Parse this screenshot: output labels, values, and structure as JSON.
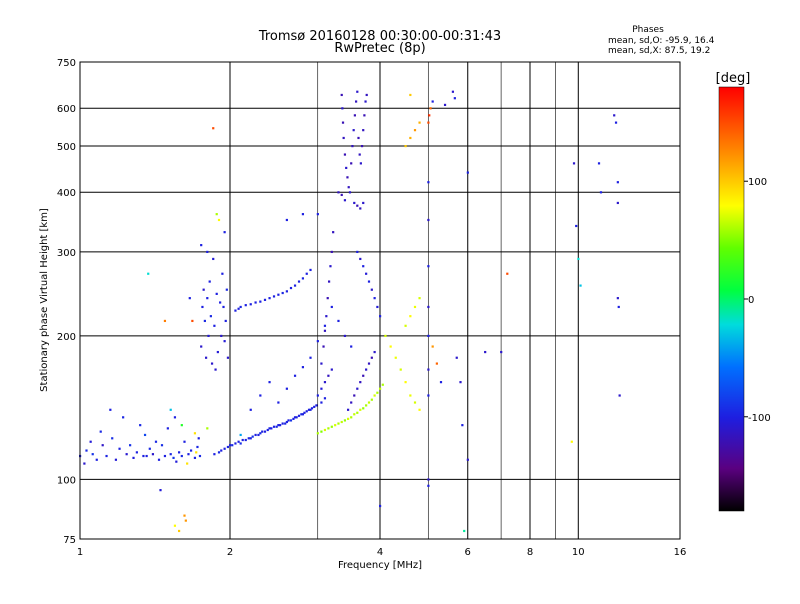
{
  "chart_data": {
    "type": "scatter",
    "title": "Tromsø 20160128 00:30:00-00:31:43",
    "subtitle": "RwPretec (8p)",
    "xlabel": "Frequency [MHz]",
    "ylabel": "Stationary phase Virtual Height [km]",
    "x_scale": "log",
    "y_scale": "log",
    "xlim": [
      1,
      16
    ],
    "ylim": [
      75,
      750
    ],
    "x_ticks": [
      "1",
      "2",
      "4",
      "6",
      "8",
      "10",
      "16"
    ],
    "x_tick_values": [
      1,
      2,
      4,
      6,
      8,
      10,
      16
    ],
    "x_minor_values": [
      3,
      5,
      7,
      9
    ],
    "y_ticks": [
      "75",
      "100",
      "200",
      "300",
      "400",
      "500",
      "600",
      "750"
    ],
    "y_tick_values": [
      75,
      100,
      200,
      300,
      400,
      500,
      600,
      750
    ],
    "grid": true,
    "colorbar": {
      "label": "[deg]",
      "min": -180,
      "max": 180,
      "ticks": [
        "100",
        "0",
        "-100"
      ],
      "tick_values": [
        100,
        0,
        -100
      ]
    },
    "stats": {
      "header": "Phases",
      "line1": "mean, sd,O: -95.9, 16.4",
      "line2": "mean, sd,X:  87.5, 19.2"
    },
    "points": [
      [
        1.0,
        112,
        -100
      ],
      [
        1.02,
        108,
        -110
      ],
      [
        1.03,
        115,
        -95
      ],
      [
        1.05,
        120,
        -105
      ],
      [
        1.06,
        113,
        -90
      ],
      [
        1.08,
        110,
        -100
      ],
      [
        1.1,
        126,
        -95
      ],
      [
        1.11,
        118,
        -112
      ],
      [
        1.13,
        112,
        -98
      ],
      [
        1.15,
        140,
        -100
      ],
      [
        1.16,
        122,
        -92
      ],
      [
        1.18,
        110,
        -105
      ],
      [
        1.2,
        116,
        -100
      ],
      [
        1.22,
        135,
        -96
      ],
      [
        1.24,
        113,
        -108
      ],
      [
        1.26,
        118,
        -90
      ],
      [
        1.28,
        111,
        -102
      ],
      [
        1.3,
        114,
        -99
      ],
      [
        1.32,
        130,
        -95
      ],
      [
        1.34,
        112,
        -100
      ],
      [
        1.35,
        124,
        -80
      ],
      [
        1.36,
        112,
        -100
      ],
      [
        1.37,
        270,
        -20
      ],
      [
        1.38,
        116,
        -95
      ],
      [
        1.4,
        113,
        -110
      ],
      [
        1.42,
        120,
        -95
      ],
      [
        1.44,
        110,
        -100
      ],
      [
        1.45,
        95,
        -105
      ],
      [
        1.46,
        118,
        -92
      ],
      [
        1.48,
        112,
        -100
      ],
      [
        1.5,
        128,
        -100
      ],
      [
        1.52,
        113,
        -96
      ],
      [
        1.54,
        111,
        -88
      ],
      [
        1.55,
        135,
        -100
      ],
      [
        1.56,
        109,
        -104
      ],
      [
        1.58,
        114,
        -99
      ],
      [
        1.6,
        112,
        -95
      ],
      [
        1.62,
        120,
        -100
      ],
      [
        1.63,
        82,
        120
      ],
      [
        1.64,
        108,
        90
      ],
      [
        1.65,
        113,
        -100
      ],
      [
        1.66,
        240,
        -100
      ],
      [
        1.67,
        115,
        -98
      ],
      [
        1.68,
        215,
        150
      ],
      [
        1.7,
        111,
        -100
      ],
      [
        1.71,
        114,
        90
      ],
      [
        1.72,
        117,
        -96
      ],
      [
        1.73,
        122,
        -100
      ],
      [
        1.74,
        112,
        -95
      ],
      [
        1.75,
        190,
        -110
      ],
      [
        1.76,
        230,
        -100
      ],
      [
        1.77,
        250,
        -110
      ],
      [
        1.78,
        215,
        -95
      ],
      [
        1.79,
        180,
        -110
      ],
      [
        1.8,
        240,
        -100
      ],
      [
        1.81,
        200,
        -105
      ],
      [
        1.82,
        260,
        -100
      ],
      [
        1.83,
        220,
        -95
      ],
      [
        1.84,
        175,
        -110
      ],
      [
        1.85,
        290,
        -105
      ],
      [
        1.86,
        210,
        -100
      ],
      [
        1.87,
        170,
        -110
      ],
      [
        1.88,
        245,
        -100
      ],
      [
        1.89,
        185,
        -105
      ],
      [
        1.9,
        350,
        80
      ],
      [
        1.91,
        235,
        -100
      ],
      [
        1.92,
        200,
        -110
      ],
      [
        1.93,
        270,
        -100
      ],
      [
        1.94,
        230,
        -100
      ],
      [
        1.95,
        195,
        -105
      ],
      [
        1.96,
        215,
        -100
      ],
      [
        1.97,
        250,
        -95
      ],
      [
        1.98,
        180,
        -110
      ],
      [
        1.85,
        545,
        150
      ],
      [
        1.75,
        310,
        -100
      ],
      [
        1.8,
        300,
        -100
      ],
      [
        1.88,
        360,
        60
      ],
      [
        1.95,
        330,
        -100
      ],
      [
        1.86,
        113,
        -100
      ],
      [
        1.9,
        114,
        -95
      ],
      [
        1.92,
        115,
        -100
      ],
      [
        1.95,
        116,
        -100
      ],
      [
        1.98,
        117,
        -98
      ],
      [
        2.0,
        118,
        -100
      ],
      [
        2.02,
        118,
        -95
      ],
      [
        2.05,
        119,
        -100
      ],
      [
        2.08,
        120,
        -100
      ],
      [
        2.1,
        119,
        -92
      ],
      [
        2.12,
        121,
        -100
      ],
      [
        2.15,
        121,
        -100
      ],
      [
        2.18,
        122,
        -98
      ],
      [
        2.2,
        122,
        -100
      ],
      [
        2.22,
        123,
        -90
      ],
      [
        2.25,
        124,
        -100
      ],
      [
        2.28,
        124,
        -100
      ],
      [
        2.3,
        125,
        -95
      ],
      [
        2.32,
        126,
        -100
      ],
      [
        2.35,
        126,
        -100
      ],
      [
        2.38,
        127,
        -100
      ],
      [
        2.4,
        128,
        -98
      ],
      [
        2.42,
        128,
        -100
      ],
      [
        2.45,
        129,
        -100
      ],
      [
        2.48,
        129,
        -95
      ],
      [
        2.5,
        130,
        -100
      ],
      [
        2.52,
        130,
        -100
      ],
      [
        2.55,
        131,
        -100
      ],
      [
        2.58,
        131,
        -96
      ],
      [
        2.6,
        132,
        -100
      ],
      [
        2.62,
        133,
        -100
      ],
      [
        2.65,
        133,
        -90
      ],
      [
        2.68,
        134,
        -100
      ],
      [
        2.7,
        135,
        -100
      ],
      [
        2.72,
        135,
        -100
      ],
      [
        2.75,
        136,
        -100
      ],
      [
        2.78,
        137,
        -95
      ],
      [
        2.8,
        137,
        -100
      ],
      [
        2.82,
        138,
        -100
      ],
      [
        2.85,
        139,
        -100
      ],
      [
        2.88,
        140,
        -100
      ],
      [
        2.9,
        140,
        -98
      ],
      [
        2.92,
        141,
        -100
      ],
      [
        2.95,
        142,
        -100
      ],
      [
        2.98,
        143,
        -100
      ],
      [
        2.05,
        226,
        -100
      ],
      [
        2.08,
        228,
        -100
      ],
      [
        2.1,
        230,
        -96
      ],
      [
        2.15,
        232,
        -100
      ],
      [
        2.2,
        233,
        -100
      ],
      [
        2.25,
        235,
        -100
      ],
      [
        2.3,
        236,
        -98
      ],
      [
        2.35,
        238,
        -100
      ],
      [
        2.4,
        240,
        -100
      ],
      [
        2.45,
        242,
        -100
      ],
      [
        2.5,
        244,
        -100
      ],
      [
        2.55,
        246,
        -96
      ],
      [
        2.6,
        248,
        -100
      ],
      [
        2.65,
        252,
        -100
      ],
      [
        2.7,
        255,
        -100
      ],
      [
        2.75,
        260,
        -100
      ],
      [
        2.8,
        264,
        -98
      ],
      [
        2.85,
        270,
        -100
      ],
      [
        2.9,
        275,
        -100
      ],
      [
        2.6,
        350,
        -100
      ],
      [
        2.8,
        360,
        -100
      ],
      [
        3.0,
        360,
        -100
      ],
      [
        3.05,
        175,
        -110
      ],
      [
        3.08,
        190,
        -120
      ],
      [
        3.1,
        205,
        -115
      ],
      [
        3.12,
        220,
        -110
      ],
      [
        3.14,
        240,
        -120
      ],
      [
        3.16,
        260,
        -115
      ],
      [
        3.18,
        280,
        -110
      ],
      [
        3.2,
        300,
        -120
      ],
      [
        3.22,
        330,
        -115
      ],
      [
        3.0,
        150,
        -100
      ],
      [
        3.05,
        155,
        -105
      ],
      [
        3.1,
        160,
        -110
      ],
      [
        3.15,
        165,
        -115
      ],
      [
        3.2,
        170,
        -110
      ],
      [
        3.05,
        145,
        -100
      ],
      [
        3.1,
        148,
        -100
      ],
      [
        3.0,
        125,
        60
      ],
      [
        3.05,
        126,
        50
      ],
      [
        3.1,
        127,
        70
      ],
      [
        3.15,
        128,
        60
      ],
      [
        3.2,
        129,
        55
      ],
      [
        3.25,
        130,
        70
      ],
      [
        3.3,
        131,
        60
      ],
      [
        3.35,
        132,
        65
      ],
      [
        3.4,
        133,
        55
      ],
      [
        3.45,
        134,
        70
      ],
      [
        3.5,
        135,
        60
      ],
      [
        3.55,
        137,
        65
      ],
      [
        3.6,
        138,
        60
      ],
      [
        3.65,
        140,
        70
      ],
      [
        3.7,
        141,
        55
      ],
      [
        3.75,
        143,
        60
      ],
      [
        3.8,
        145,
        65
      ],
      [
        3.85,
        147,
        60
      ],
      [
        3.9,
        150,
        70
      ],
      [
        3.95,
        152,
        60
      ],
      [
        4.0,
        155,
        65
      ],
      [
        4.05,
        158,
        60
      ],
      [
        3.35,
        640,
        -120
      ],
      [
        3.36,
        600,
        -110
      ],
      [
        3.37,
        560,
        -120
      ],
      [
        3.38,
        520,
        -115
      ],
      [
        3.4,
        480,
        -120
      ],
      [
        3.42,
        450,
        -110
      ],
      [
        3.44,
        430,
        -120
      ],
      [
        3.46,
        410,
        -115
      ],
      [
        3.48,
        400,
        -110
      ],
      [
        3.5,
        460,
        -120
      ],
      [
        3.52,
        500,
        -115
      ],
      [
        3.54,
        540,
        -110
      ],
      [
        3.56,
        580,
        -120
      ],
      [
        3.58,
        620,
        -115
      ],
      [
        3.6,
        650,
        -110
      ],
      [
        3.62,
        520,
        -120
      ],
      [
        3.64,
        480,
        -115
      ],
      [
        3.66,
        460,
        -110
      ],
      [
        3.68,
        500,
        -120
      ],
      [
        3.7,
        540,
        -115
      ],
      [
        3.72,
        580,
        -120
      ],
      [
        3.74,
        620,
        -110
      ],
      [
        3.76,
        640,
        -115
      ],
      [
        3.55,
        380,
        -110
      ],
      [
        3.6,
        375,
        -120
      ],
      [
        3.65,
        370,
        -115
      ],
      [
        3.7,
        380,
        -110
      ],
      [
        3.3,
        400,
        -115
      ],
      [
        3.35,
        395,
        -120
      ],
      [
        3.4,
        385,
        -110
      ],
      [
        3.45,
        140,
        -110
      ],
      [
        3.5,
        145,
        -115
      ],
      [
        3.55,
        150,
        -120
      ],
      [
        3.6,
        155,
        -110
      ],
      [
        3.65,
        160,
        -115
      ],
      [
        3.7,
        165,
        -120
      ],
      [
        3.75,
        170,
        -110
      ],
      [
        3.8,
        175,
        -115
      ],
      [
        3.85,
        180,
        -120
      ],
      [
        3.9,
        185,
        -110
      ],
      [
        3.6,
        300,
        -100
      ],
      [
        3.65,
        290,
        -110
      ],
      [
        3.7,
        280,
        -100
      ],
      [
        3.75,
        270,
        -105
      ],
      [
        3.8,
        260,
        -100
      ],
      [
        3.85,
        250,
        -110
      ],
      [
        3.9,
        240,
        -100
      ],
      [
        3.95,
        230,
        -105
      ],
      [
        4.0,
        220,
        -100
      ],
      [
        4.0,
        88,
        -100
      ],
      [
        4.1,
        200,
        70
      ],
      [
        4.2,
        190,
        80
      ],
      [
        4.3,
        180,
        75
      ],
      [
        4.4,
        170,
        70
      ],
      [
        4.5,
        160,
        80
      ],
      [
        4.6,
        150,
        75
      ],
      [
        4.7,
        145,
        70
      ],
      [
        4.8,
        140,
        80
      ],
      [
        4.5,
        210,
        70
      ],
      [
        4.6,
        220,
        80
      ],
      [
        4.7,
        230,
        75
      ],
      [
        4.8,
        240,
        70
      ],
      [
        4.5,
        500,
        100
      ],
      [
        4.6,
        520,
        110
      ],
      [
        4.7,
        540,
        120
      ],
      [
        4.8,
        560,
        110
      ],
      [
        4.6,
        640,
        100
      ],
      [
        5.0,
        560,
        150
      ],
      [
        5.02,
        580,
        160
      ],
      [
        5.05,
        600,
        140
      ],
      [
        5.1,
        620,
        -100
      ],
      [
        5.0,
        420,
        -100
      ],
      [
        5.0,
        350,
        -110
      ],
      [
        5.0,
        280,
        -100
      ],
      [
        5.0,
        230,
        -110
      ],
      [
        5.0,
        200,
        -100
      ],
      [
        5.0,
        170,
        -110
      ],
      [
        5.0,
        150,
        -100
      ],
      [
        5.0,
        100,
        -110
      ],
      [
        5.0,
        97,
        -100
      ],
      [
        5.1,
        190,
        120
      ],
      [
        5.2,
        175,
        140
      ],
      [
        5.3,
        160,
        -100
      ],
      [
        5.4,
        610,
        -110
      ],
      [
        5.6,
        650,
        -110
      ],
      [
        5.65,
        630,
        -100
      ],
      [
        5.7,
        180,
        -110
      ],
      [
        5.8,
        160,
        -110
      ],
      [
        5.85,
        130,
        -100
      ],
      [
        5.9,
        78,
        -10
      ],
      [
        6.0,
        440,
        -100
      ],
      [
        6.0,
        110,
        -110
      ],
      [
        6.5,
        185,
        -110
      ],
      [
        7.0,
        185,
        -110
      ],
      [
        7.2,
        270,
        150
      ],
      [
        9.8,
        460,
        -110
      ],
      [
        9.9,
        340,
        -100
      ],
      [
        10.0,
        290,
        -20
      ],
      [
        10.1,
        255,
        -30
      ],
      [
        11.0,
        460,
        -100
      ],
      [
        11.1,
        400,
        -100
      ],
      [
        11.8,
        580,
        -110
      ],
      [
        11.9,
        560,
        -100
      ],
      [
        12.0,
        420,
        -100
      ],
      [
        12.0,
        380,
        -110
      ],
      [
        12.0,
        240,
        -110
      ],
      [
        12.05,
        230,
        -100
      ],
      [
        12.1,
        150,
        -110
      ],
      [
        9.7,
        120,
        80
      ],
      [
        1.55,
        80,
        80
      ],
      [
        1.58,
        78,
        100
      ],
      [
        1.62,
        84,
        120
      ],
      [
        1.48,
        215,
        130
      ],
      [
        1.52,
        140,
        -30
      ],
      [
        1.6,
        130,
        20
      ],
      [
        1.7,
        125,
        90
      ],
      [
        1.8,
        128,
        60
      ],
      [
        2.1,
        124,
        -40
      ],
      [
        2.2,
        140,
        -100
      ],
      [
        2.3,
        150,
        -100
      ],
      [
        2.4,
        160,
        -100
      ],
      [
        2.5,
        145,
        -100
      ],
      [
        2.6,
        155,
        -100
      ],
      [
        2.7,
        165,
        -100
      ],
      [
        2.8,
        172,
        -100
      ],
      [
        2.9,
        180,
        -100
      ],
      [
        3.0,
        195,
        -100
      ],
      [
        3.1,
        210,
        -100
      ],
      [
        3.2,
        230,
        -100
      ],
      [
        3.3,
        215,
        -100
      ],
      [
        3.4,
        200,
        -110
      ],
      [
        3.5,
        190,
        -100
      ]
    ]
  }
}
